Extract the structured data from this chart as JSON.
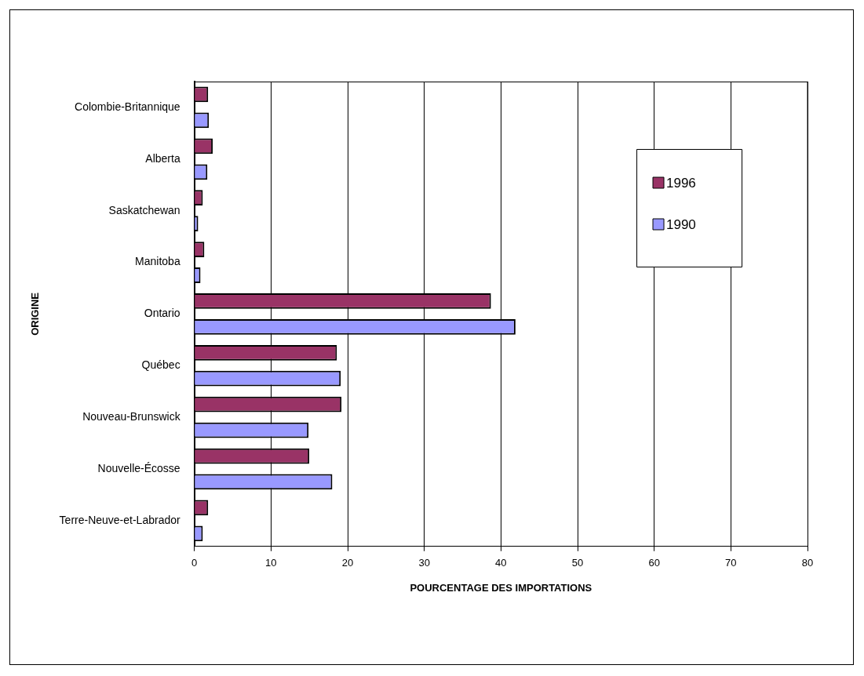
{
  "chart_data": {
    "type": "bar",
    "orientation": "horizontal",
    "xlabel": "POURCENTAGE DES IMPORTATIONS",
    "ylabel": "ORIGINE",
    "categories": [
      "Colombie-Britannique",
      "Alberta",
      "Saskatchewan",
      "Manitoba",
      "Ontario",
      "Québec",
      "Nouveau-Brunswick",
      "Nouvelle-Écosse",
      "Terre-Neuve-et-Labrador"
    ],
    "series": [
      {
        "name": "1996",
        "color": "#993366",
        "values": [
          1.8,
          2.4,
          1.1,
          1.3,
          38.7,
          18.6,
          19.2,
          15.0,
          1.8
        ]
      },
      {
        "name": "1990",
        "color": "#9999ff",
        "values": [
          1.9,
          1.7,
          0.5,
          0.8,
          41.9,
          19.1,
          14.9,
          18.0,
          1.1
        ]
      }
    ],
    "xlim": [
      0,
      80
    ],
    "xticks": [
      0,
      10,
      20,
      30,
      40,
      50,
      60,
      70,
      80
    ],
    "grid": "x",
    "legend": "top right"
  }
}
